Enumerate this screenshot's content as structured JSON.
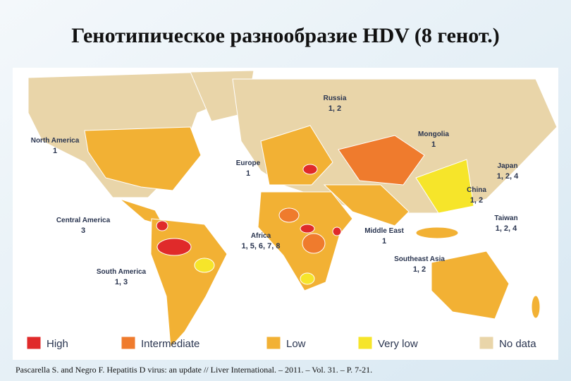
{
  "title": "Генотипическое разнообразие HDV (8 генот.)",
  "map": {
    "regions": [
      {
        "name": "Russia",
        "genotypes": "1, 2"
      },
      {
        "name": "North America",
        "genotypes": "1"
      },
      {
        "name": "Mongolia",
        "genotypes": "1"
      },
      {
        "name": "Europe",
        "genotypes": "1"
      },
      {
        "name": "Japan",
        "genotypes": "1, 2, 4"
      },
      {
        "name": "China",
        "genotypes": "1, 2"
      },
      {
        "name": "Central America",
        "genotypes": "3"
      },
      {
        "name": "Taiwan",
        "genotypes": "1, 2, 4"
      },
      {
        "name": "Africa",
        "genotypes": "1, 5, 6, 7, 8"
      },
      {
        "name": "Middle East",
        "genotypes": "1"
      },
      {
        "name": "Southeast Asia",
        "genotypes": "1, 2"
      },
      {
        "name": "South America",
        "genotypes": "1, 3"
      }
    ]
  },
  "legend": [
    "High",
    "Intermediate",
    "Low",
    "Very low",
    "No data"
  ],
  "citation": "Pascarella S. and Negro F. Hepatitis D virus: an update // Liver International. – 2011. – Vol. 31. – P. 7-21."
}
